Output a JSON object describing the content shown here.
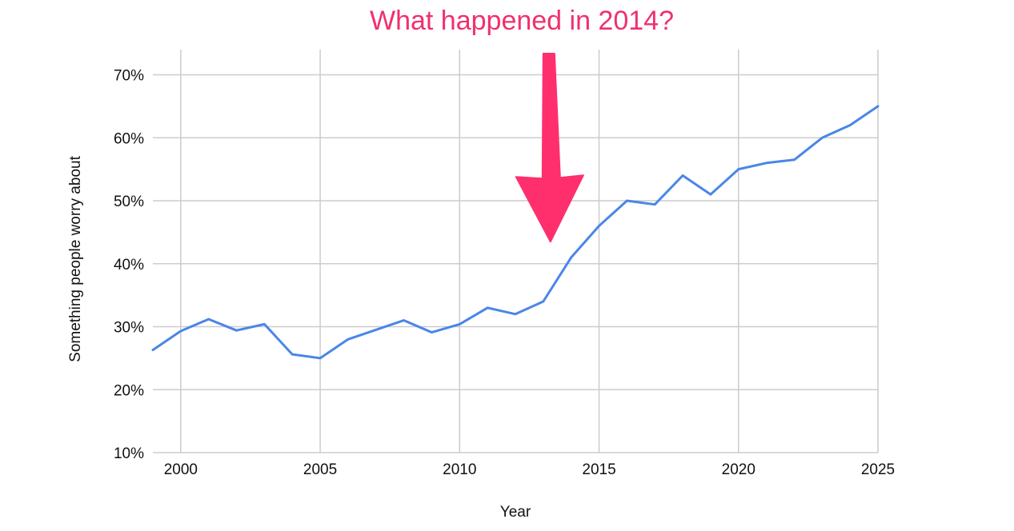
{
  "chart_data": {
    "type": "line",
    "title": "What happened in 2014?",
    "xlabel": "Year",
    "ylabel": "Something people worry about",
    "x_tick_labels": [
      "2000",
      "2005",
      "2010",
      "2015",
      "2020",
      "2025"
    ],
    "x_ticks": [
      2000,
      2005,
      2010,
      2015,
      2020,
      2025
    ],
    "y_tick_labels": [
      "10%",
      "20%",
      "30%",
      "40%",
      "50%",
      "60%",
      "70%"
    ],
    "y_ticks": [
      10,
      20,
      30,
      40,
      50,
      60,
      70
    ],
    "xlim": [
      1999,
      2025
    ],
    "ylim": [
      10,
      74
    ],
    "y_unit": "%",
    "grid": true,
    "series": [
      {
        "x": [
          1999,
          2000,
          2001,
          2002,
          2003,
          2004,
          2005,
          2006,
          2007,
          2008,
          2009,
          2010,
          2011,
          2012,
          2013,
          2014,
          2015,
          2016,
          2017,
          2018,
          2019,
          2020,
          2021,
          2022,
          2023,
          2024,
          2025
        ],
        "values": [
          26.3,
          29.3,
          31.2,
          29.4,
          30.4,
          25.6,
          25.0,
          28.0,
          29.5,
          31.0,
          29.1,
          30.4,
          33.0,
          32.0,
          34.0,
          41.0,
          46.0,
          50.0,
          49.4,
          54.0,
          51.0,
          55.0,
          56.0,
          56.5,
          60.0,
          62.0,
          65.0
        ]
      }
    ],
    "annotation": {
      "type": "arrow",
      "target_x": 2013.2,
      "target_y": 43.5,
      "description": "pink downward arrow pointing at the 2014 rise"
    },
    "colors": {
      "line": "#4a86e8",
      "grid": "#cccccc",
      "title": "#f0306e",
      "arrow": "#ff2f6e"
    }
  }
}
